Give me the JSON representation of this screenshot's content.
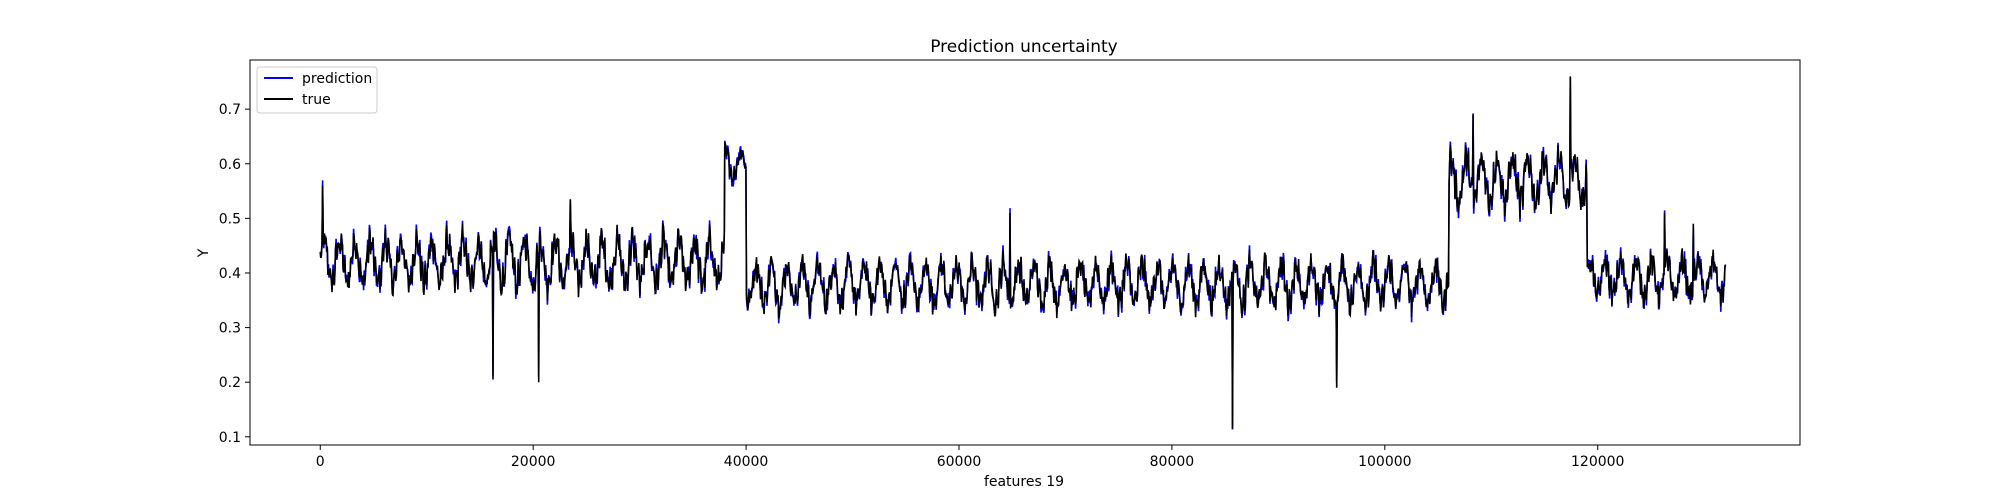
{
  "chart_data": {
    "type": "line",
    "title": "Prediction uncertainty",
    "xlabel": "features 19",
    "ylabel": "Y",
    "xlim": [
      -6600,
      139000
    ],
    "ylim": [
      0.085,
      0.79
    ],
    "x_ticks": [
      0,
      20000,
      40000,
      60000,
      80000,
      100000,
      120000
    ],
    "y_ticks": [
      0.1,
      0.2,
      0.3,
      0.4,
      0.5,
      0.6,
      0.7
    ],
    "grid": false,
    "legend_position": "top-left",
    "series": [
      {
        "name": "prediction",
        "color": "#0000ff"
      },
      {
        "name": "true",
        "color": "#000000"
      }
    ],
    "x_range": [
      0,
      132000
    ],
    "regimes": [
      {
        "from": 0,
        "to": 38000,
        "level": 0.42,
        "amplitude": 0.05
      },
      {
        "from": 38000,
        "to": 40000,
        "level": 0.6,
        "amplitude": 0.03
      },
      {
        "from": 40000,
        "to": 106000,
        "level": 0.38,
        "amplitude": 0.045
      },
      {
        "from": 106000,
        "to": 119000,
        "level": 0.57,
        "amplitude": 0.05
      },
      {
        "from": 119000,
        "to": 132000,
        "level": 0.39,
        "amplitude": 0.04
      }
    ],
    "spikes_down": [
      {
        "x": 16200,
        "y": 0.205
      },
      {
        "x": 20500,
        "y": 0.2
      },
      {
        "x": 85700,
        "y": 0.115
      },
      {
        "x": 95500,
        "y": 0.19
      }
    ],
    "spikes_up": [
      {
        "x": 200,
        "y": 0.56
      },
      {
        "x": 23500,
        "y": 0.535
      },
      {
        "x": 64800,
        "y": 0.51
      },
      {
        "x": 108300,
        "y": 0.69
      },
      {
        "x": 117400,
        "y": 0.76
      },
      {
        "x": 126300,
        "y": 0.51
      },
      {
        "x": 129000,
        "y": 0.49
      }
    ]
  }
}
